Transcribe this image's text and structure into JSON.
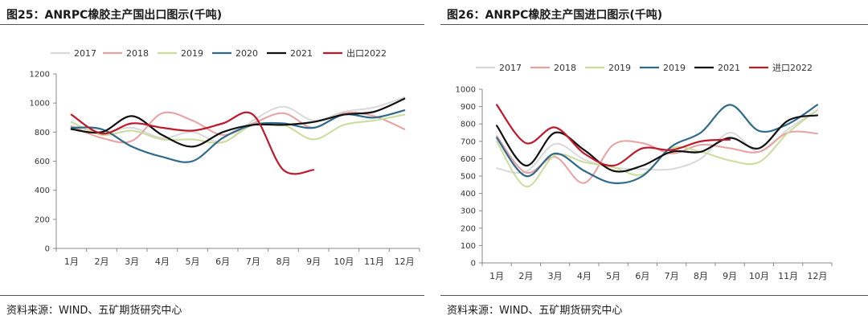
{
  "charts": [
    {
      "panel_title": "图25：ANRPC橡胶主产国出口图示(千吨)",
      "source": "资料来源：WIND、五矿期货研究中心"
    },
    {
      "panel_title": "图26：ANRPC橡胶主产国进口图示(千吨)",
      "source": "资料来源：WIND、五矿期货研究中心"
    }
  ],
  "chart_data": [
    {
      "type": "line",
      "title": "图25：ANRPC橡胶主产国出口图示(千吨)",
      "categories": [
        "1月",
        "2月",
        "3月",
        "4月",
        "5月",
        "6月",
        "7月",
        "8月",
        "9月",
        "10月",
        "11月",
        "12月"
      ],
      "ylim": [
        0,
        1200
      ],
      "yticks": [
        0,
        200,
        400,
        600,
        800,
        1000,
        1200
      ],
      "grid": false,
      "legend": "top",
      "series": [
        {
          "name": "2017",
          "color": "#d9d9d9",
          "values": [
            840,
            800,
            830,
            760,
            800,
            730,
            880,
            975,
            880,
            940,
            970,
            1040
          ]
        },
        {
          "name": "2018",
          "color": "#e8a0a0",
          "values": [
            840,
            760,
            740,
            930,
            880,
            780,
            860,
            930,
            830,
            930,
            910,
            820
          ]
        },
        {
          "name": "2019",
          "color": "#c9dd9b",
          "values": [
            870,
            780,
            810,
            750,
            750,
            730,
            850,
            850,
            750,
            850,
            880,
            920
          ]
        },
        {
          "name": "2020",
          "color": "#2f6a8a",
          "values": [
            830,
            820,
            700,
            630,
            600,
            760,
            850,
            860,
            830,
            920,
            900,
            950
          ]
        },
        {
          "name": "2021",
          "color": "#111111",
          "values": [
            820,
            800,
            910,
            780,
            700,
            800,
            850,
            850,
            870,
            920,
            940,
            1030
          ]
        },
        {
          "name": "出口2022",
          "color": "#c0182b",
          "values": [
            920,
            790,
            860,
            830,
            810,
            860,
            920,
            540,
            540,
            null,
            null,
            null
          ]
        }
      ]
    },
    {
      "type": "line",
      "title": "图26：ANRPC橡胶主产国进口图示(千吨)",
      "categories": [
        "1月",
        "2月",
        "3月",
        "4月",
        "5月",
        "6月",
        "7月",
        "8月",
        "9月",
        "10月",
        "11月",
        "12月"
      ],
      "ylim": [
        0,
        1000
      ],
      "yticks": [
        0,
        100,
        200,
        300,
        400,
        500,
        600,
        700,
        800,
        900,
        1000
      ],
      "grid": false,
      "legend": "top",
      "series": [
        {
          "name": "2017",
          "color": "#d9d9d9",
          "values": [
            545,
            525,
            685,
            595,
            550,
            540,
            540,
            600,
            750,
            640,
            770,
            880
          ]
        },
        {
          "name": "2018",
          "color": "#e8a0a0",
          "values": [
            730,
            520,
            610,
            460,
            680,
            690,
            630,
            680,
            660,
            640,
            750,
            745
          ]
        },
        {
          "name": "2019",
          "color": "#c9dd9b",
          "values": [
            700,
            440,
            620,
            580,
            550,
            510,
            660,
            640,
            590,
            580,
            750,
            880
          ]
        },
        {
          "name": "2019",
          "color": "#2f6a8a",
          "values": [
            720,
            500,
            630,
            530,
            460,
            500,
            670,
            750,
            910,
            760,
            800,
            910
          ]
        },
        {
          "name": "2021",
          "color": "#111111",
          "values": [
            790,
            560,
            750,
            650,
            530,
            560,
            640,
            640,
            720,
            660,
            820,
            850
          ]
        },
        {
          "name": "进口2022",
          "color": "#c0182b",
          "values": [
            910,
            690,
            780,
            630,
            560,
            660,
            650,
            700,
            710,
            null,
            null,
            null
          ]
        }
      ]
    }
  ]
}
